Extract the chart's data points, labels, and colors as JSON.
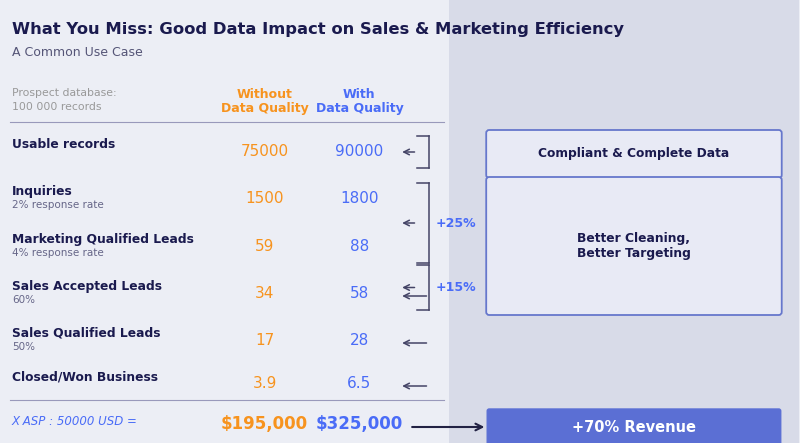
{
  "title": "What You Miss: Good Data Impact on Sales & Marketing Efficiency",
  "subtitle": "A Common Use Case",
  "bg_color": "#eceef5",
  "right_bg_color": "#d8dbe8",
  "col1_label_line1": "Without",
  "col1_label_line2": "Data Quality",
  "col2_label_line1": "With",
  "col2_label_line2": "Data Quality",
  "header_line1": "Prospect database:",
  "header_line2": "100 000 records",
  "rows": [
    {
      "label": "Usable records",
      "sub": "",
      "v1": "75000",
      "v2": "90000"
    },
    {
      "label": "Inquiries",
      "sub": "2% response rate",
      "v1": "1500",
      "v2": "1800"
    },
    {
      "label": "Marketing Qualified Leads",
      "sub": "4% response rate",
      "v1": "59",
      "v2": "88"
    },
    {
      "label": "Sales Accepted Leads",
      "sub": "60%",
      "v1": "34",
      "v2": "58"
    },
    {
      "label": "Sales Qualified Leads",
      "sub": "50%",
      "v1": "17",
      "v2": "28"
    },
    {
      "label": "Closed/Won Business",
      "sub": "",
      "v1": "3.9",
      "v2": "6.5"
    }
  ],
  "footer_label": "X ASP : 50000 USD =",
  "footer_v1": "$195,000",
  "footer_v2": "$325,000",
  "orange": "#f7931e",
  "blue": "#4a6cf7",
  "dark": "#1a1a4e",
  "gray": "#999999",
  "box1_label": "Compliant & Complete Data",
  "box2_label": "Better Cleaning,\nBetter Targeting",
  "box3_label": "+70% Revenue",
  "box3_color": "#5b6fd4",
  "pct1": "+25%",
  "pct2": "+15%",
  "bracket_color": "#444466",
  "box_face": "#e8eaf5",
  "box_edge": "#6677cc"
}
